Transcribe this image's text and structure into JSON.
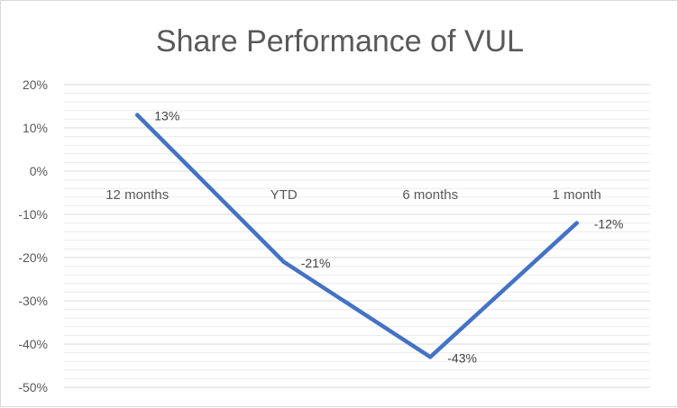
{
  "chart_data": {
    "type": "line",
    "title": "Share Performance of VUL",
    "categories": [
      "12 months",
      "YTD",
      "6 months",
      "1 month"
    ],
    "series": [
      {
        "values": [
          13,
          -21,
          -43,
          -12
        ]
      }
    ],
    "data_labels": [
      "13%",
      "-21%",
      "-43%",
      "-12%"
    ],
    "ylim": [
      -50,
      20
    ],
    "y_ticks": [
      20,
      10,
      0,
      -10,
      -20,
      -30,
      -40,
      -50
    ],
    "y_tick_labels": [
      "20%",
      "10%",
      "0%",
      "-10%",
      "-20%",
      "-30%",
      "-40%",
      "-50%"
    ],
    "grid": true,
    "legend": "none",
    "line_color": "#4472c4",
    "grid_color": "#d9d9d9",
    "minor_grid_color": "#ececec"
  }
}
